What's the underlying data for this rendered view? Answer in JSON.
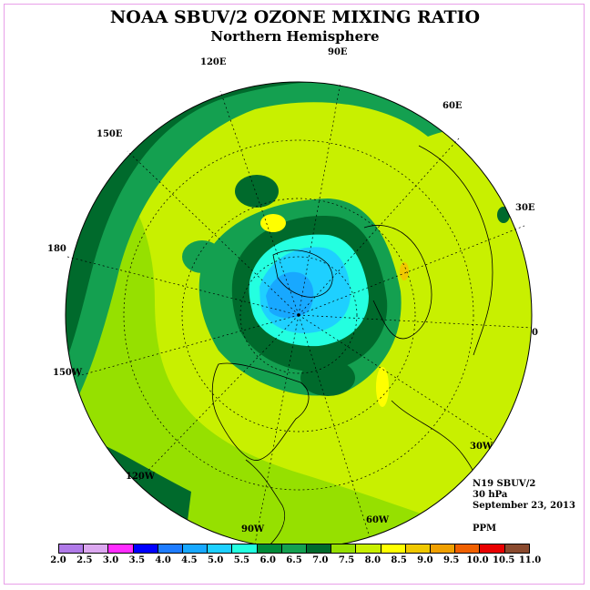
{
  "title": "NOAA SBUV/2 OZONE MIXING RATIO",
  "subtitle": "Northern Hemisphere",
  "longitude_labels": {
    "lon_90e": "90E",
    "lon_60e": "60E",
    "lon_30e": "30E",
    "lon_0": "0",
    "lon_30w": "30W",
    "lon_60w": "60W",
    "lon_90w": "90W",
    "lon_120w": "120W",
    "lon_150w": "150W",
    "lon_180": "180",
    "lon_150e": "150E",
    "lon_120e": "120E"
  },
  "info": {
    "instrument": "N19 SBUV/2",
    "level": "30 hPa",
    "date": "September 23, 2013",
    "units": "PPM"
  },
  "colorbar": {
    "ticks": [
      "2.0",
      "2.5",
      "3.0",
      "3.5",
      "4.0",
      "4.5",
      "5.0",
      "5.5",
      "6.0",
      "6.5",
      "7.0",
      "7.5",
      "8.0",
      "8.5",
      "9.0",
      "9.5",
      "10.0",
      "10.5",
      "11.0"
    ],
    "colors": [
      "#b07ae8",
      "#dca8f0",
      "#ff2cff",
      "#0000ff",
      "#1e7cff",
      "#18a8ff",
      "#1ed0ff",
      "#24ffe0",
      "#008a38",
      "#14a050",
      "#006a2c",
      "#96e000",
      "#c8f000",
      "#ffff00",
      "#f0c800",
      "#f0a000",
      "#f06000",
      "#e80000",
      "#8a4a2e"
    ]
  }
}
